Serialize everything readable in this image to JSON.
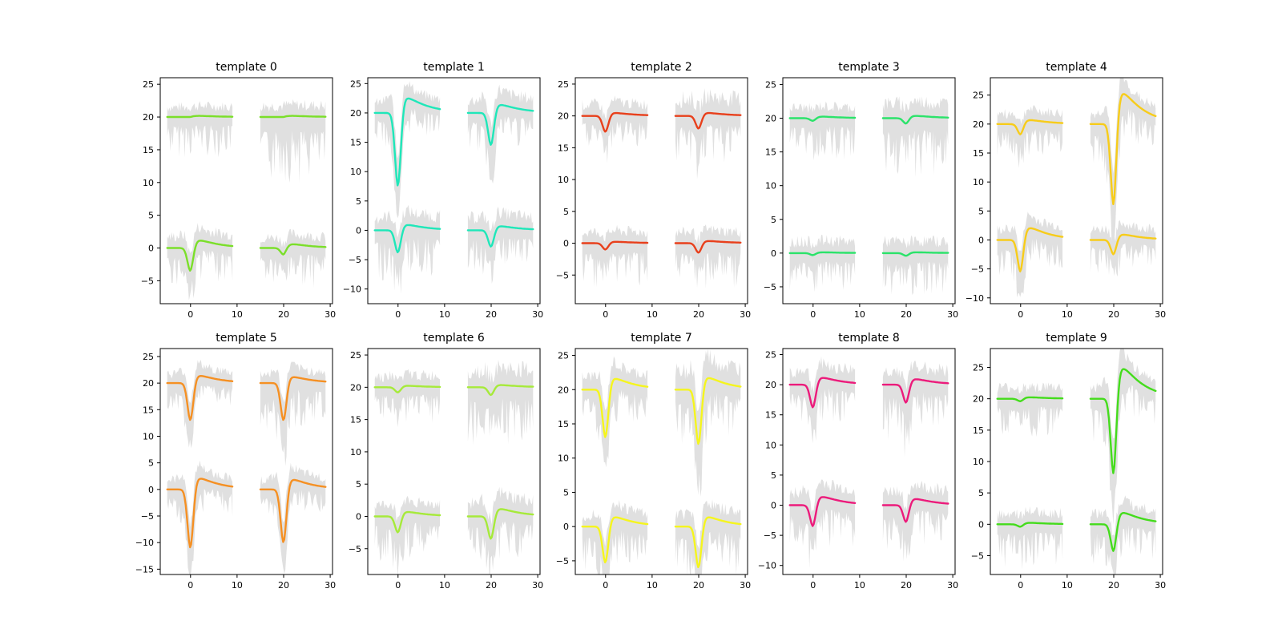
{
  "figure": {
    "shared_x_ticks": [
      0,
      10,
      20,
      30
    ],
    "channel_x_ranges": [
      [
        -5,
        9
      ],
      [
        15,
        29
      ]
    ],
    "channel_offsets": [
      20,
      0
    ],
    "band_color": "#e0e0e0",
    "mean_color": "#888888"
  },
  "chart_data": [
    {
      "type": "line",
      "title": "template 0",
      "color": "#7bdf2a",
      "ylim": [
        -8.5,
        26
      ],
      "yticks": [
        -5,
        0,
        5,
        10,
        15,
        20,
        25
      ],
      "series": [
        {
          "channel": 0,
          "offset": 20,
          "trough_time": 0,
          "trough": 0.0,
          "peak": 0.15,
          "band": [
            1.8,
            5.5
          ]
        },
        {
          "channel": 1,
          "offset": 20,
          "trough_time": 20,
          "trough": 0.0,
          "peak": 0.15,
          "band": [
            2.0,
            9.0
          ]
        },
        {
          "channel": 0,
          "offset": 0,
          "trough_time": 0,
          "trough": -3.5,
          "peak": 1.0,
          "band": [
            2.0,
            5.0
          ]
        },
        {
          "channel": 1,
          "offset": 0,
          "trough_time": 20,
          "trough": -1.0,
          "peak": 0.5,
          "band": [
            1.8,
            5.5
          ]
        }
      ]
    },
    {
      "type": "line",
      "title": "template 1",
      "color": "#1fe7b9",
      "ylim": [
        -12.5,
        26
      ],
      "yticks": [
        -10,
        -5,
        0,
        5,
        10,
        15,
        20,
        25
      ],
      "series": [
        {
          "channel": 0,
          "offset": 20,
          "trough_time": 0,
          "trough": -12.5,
          "peak": 2.2,
          "band": [
            2.0,
            4.5
          ]
        },
        {
          "channel": 1,
          "offset": 20,
          "trough_time": 20,
          "trough": -5.5,
          "peak": 1.2,
          "band": [
            2.5,
            6.0
          ]
        },
        {
          "channel": 0,
          "offset": 0,
          "trough_time": 0,
          "trough": -3.8,
          "peak": 0.8,
          "band": [
            2.5,
            7.5
          ]
        },
        {
          "channel": 1,
          "offset": 0,
          "trough_time": 20,
          "trough": -2.8,
          "peak": 0.6,
          "band": [
            2.5,
            6.5
          ]
        }
      ]
    },
    {
      "type": "line",
      "title": "template 2",
      "color": "#e8401c",
      "ylim": [
        -9.5,
        26
      ],
      "yticks": [
        -5,
        0,
        5,
        10,
        15,
        20,
        25
      ],
      "series": [
        {
          "channel": 0,
          "offset": 20,
          "trough_time": 0,
          "trough": -2.5,
          "peak": 0.4,
          "band": [
            2.0,
            4.5
          ]
        },
        {
          "channel": 1,
          "offset": 20,
          "trough_time": 20,
          "trough": -2.0,
          "peak": 0.4,
          "band": [
            3.0,
            7.0
          ]
        },
        {
          "channel": 0,
          "offset": 0,
          "trough_time": 0,
          "trough": -1.0,
          "peak": 0.2,
          "band": [
            2.0,
            6.0
          ]
        },
        {
          "channel": 1,
          "offset": 0,
          "trough_time": 20,
          "trough": -1.5,
          "peak": 0.3,
          "band": [
            2.0,
            6.5
          ]
        }
      ]
    },
    {
      "type": "line",
      "title": "template 3",
      "color": "#2be36a",
      "ylim": [
        -7.5,
        26
      ],
      "yticks": [
        -5,
        0,
        5,
        10,
        15,
        20,
        25
      ],
      "series": [
        {
          "channel": 0,
          "offset": 20,
          "trough_time": 0,
          "trough": -0.4,
          "peak": 0.2,
          "band": [
            1.8,
            5.5
          ]
        },
        {
          "channel": 1,
          "offset": 20,
          "trough_time": 20,
          "trough": -0.8,
          "peak": 0.3,
          "band": [
            2.5,
            8.0
          ]
        },
        {
          "channel": 0,
          "offset": 0,
          "trough_time": 0,
          "trough": -0.3,
          "peak": 0.1,
          "band": [
            2.0,
            5.5
          ]
        },
        {
          "channel": 1,
          "offset": 0,
          "trough_time": 20,
          "trough": -0.4,
          "peak": 0.1,
          "band": [
            2.0,
            5.5
          ]
        }
      ]
    },
    {
      "type": "line",
      "title": "template 4",
      "color": "#f7cc1a",
      "ylim": [
        -11,
        28
      ],
      "yticks": [
        -10,
        -5,
        0,
        5,
        10,
        15,
        20,
        25
      ],
      "series": [
        {
          "channel": 0,
          "offset": 20,
          "trough_time": 0,
          "trough": -1.8,
          "peak": 0.6,
          "band": [
            2.0,
            5.0
          ]
        },
        {
          "channel": 1,
          "offset": 20,
          "trough_time": 20,
          "trough": -14.0,
          "peak": 4.6,
          "band": [
            2.0,
            6.0
          ]
        },
        {
          "channel": 0,
          "offset": 0,
          "trough_time": 0,
          "trough": -5.5,
          "peak": 1.8,
          "band": [
            2.0,
            5.5
          ]
        },
        {
          "channel": 1,
          "offset": 0,
          "trough_time": 20,
          "trough": -2.5,
          "peak": 0.8,
          "band": [
            2.0,
            5.0
          ]
        }
      ]
    },
    {
      "type": "line",
      "title": "template 5",
      "color": "#f59023",
      "ylim": [
        -16,
        26.5
      ],
      "yticks": [
        -15,
        -10,
        -5,
        0,
        5,
        10,
        15,
        20,
        25
      ],
      "series": [
        {
          "channel": 0,
          "offset": 20,
          "trough_time": 0,
          "trough": -7.0,
          "peak": 1.2,
          "band": [
            2.0,
            5.0
          ]
        },
        {
          "channel": 1,
          "offset": 20,
          "trough_time": 20,
          "trough": -7.0,
          "peak": 1.0,
          "band": [
            2.0,
            8.0
          ]
        },
        {
          "channel": 0,
          "offset": 0,
          "trough_time": 0,
          "trough": -11.0,
          "peak": 1.8,
          "band": [
            2.0,
            5.0
          ]
        },
        {
          "channel": 1,
          "offset": 0,
          "trough_time": 20,
          "trough": -10.0,
          "peak": 1.6,
          "band": [
            2.0,
            5.0
          ]
        }
      ]
    },
    {
      "type": "line",
      "title": "template 6",
      "color": "#a6ea3a",
      "ylim": [
        -9,
        26
      ],
      "yticks": [
        -5,
        0,
        5,
        10,
        15,
        20,
        25
      ],
      "series": [
        {
          "channel": 0,
          "offset": 20,
          "trough_time": 0,
          "trough": -0.8,
          "peak": 0.2,
          "band": [
            2.0,
            5.0
          ]
        },
        {
          "channel": 1,
          "offset": 20,
          "trough_time": 20,
          "trough": -1.2,
          "peak": 0.3,
          "band": [
            3.0,
            8.0
          ]
        },
        {
          "channel": 0,
          "offset": 0,
          "trough_time": 0,
          "trough": -2.5,
          "peak": 0.6,
          "band": [
            2.0,
            6.0
          ]
        },
        {
          "channel": 1,
          "offset": 0,
          "trough_time": 20,
          "trough": -3.5,
          "peak": 1.0,
          "band": [
            2.5,
            6.5
          ]
        }
      ]
    },
    {
      "type": "line",
      "title": "template 7",
      "color": "#f5f51e",
      "ylim": [
        -7,
        26
      ],
      "yticks": [
        -5,
        0,
        5,
        10,
        15,
        20,
        25
      ],
      "series": [
        {
          "channel": 0,
          "offset": 20,
          "trough_time": 0,
          "trough": -7.0,
          "peak": 1.4,
          "band": [
            2.0,
            5.0
          ]
        },
        {
          "channel": 1,
          "offset": 20,
          "trough_time": 20,
          "trough": -8.0,
          "peak": 1.5,
          "band": [
            3.0,
            7.0
          ]
        },
        {
          "channel": 0,
          "offset": 0,
          "trough_time": 0,
          "trough": -5.3,
          "peak": 1.2,
          "band": [
            2.0,
            6.0
          ]
        },
        {
          "channel": 1,
          "offset": 0,
          "trough_time": 20,
          "trough": -6.0,
          "peak": 1.2,
          "band": [
            2.0,
            6.5
          ]
        }
      ]
    },
    {
      "type": "line",
      "title": "template 8",
      "color": "#ec1b7b",
      "ylim": [
        -11.5,
        26
      ],
      "yticks": [
        -10,
        -5,
        0,
        5,
        10,
        15,
        20,
        25
      ],
      "series": [
        {
          "channel": 0,
          "offset": 20,
          "trough_time": 0,
          "trough": -3.8,
          "peak": 1.0,
          "band": [
            2.5,
            6.0
          ]
        },
        {
          "channel": 1,
          "offset": 20,
          "trough_time": 20,
          "trough": -3.0,
          "peak": 0.8,
          "band": [
            2.5,
            8.0
          ]
        },
        {
          "channel": 0,
          "offset": 0,
          "trough_time": 0,
          "trough": -3.5,
          "peak": 1.2,
          "band": [
            2.5,
            7.0
          ]
        },
        {
          "channel": 1,
          "offset": 0,
          "trough_time": 20,
          "trough": -2.8,
          "peak": 0.9,
          "band": [
            2.5,
            6.5
          ]
        }
      ]
    },
    {
      "type": "line",
      "title": "template 9",
      "color": "#44dc1c",
      "ylim": [
        -8,
        28
      ],
      "yticks": [
        -5,
        0,
        5,
        10,
        15,
        20,
        25
      ],
      "series": [
        {
          "channel": 0,
          "offset": 20,
          "trough_time": 0,
          "trough": -0.4,
          "peak": 0.2,
          "band": [
            2.0,
            5.5
          ]
        },
        {
          "channel": 1,
          "offset": 20,
          "trough_time": 20,
          "trough": -12.0,
          "peak": 4.2,
          "band": [
            2.0,
            6.0
          ]
        },
        {
          "channel": 0,
          "offset": 0,
          "trough_time": 0,
          "trough": -0.4,
          "peak": 0.2,
          "band": [
            2.0,
            6.0
          ]
        },
        {
          "channel": 1,
          "offset": 0,
          "trough_time": 20,
          "trough": -4.3,
          "peak": 1.6,
          "band": [
            2.0,
            5.5
          ]
        }
      ]
    }
  ]
}
